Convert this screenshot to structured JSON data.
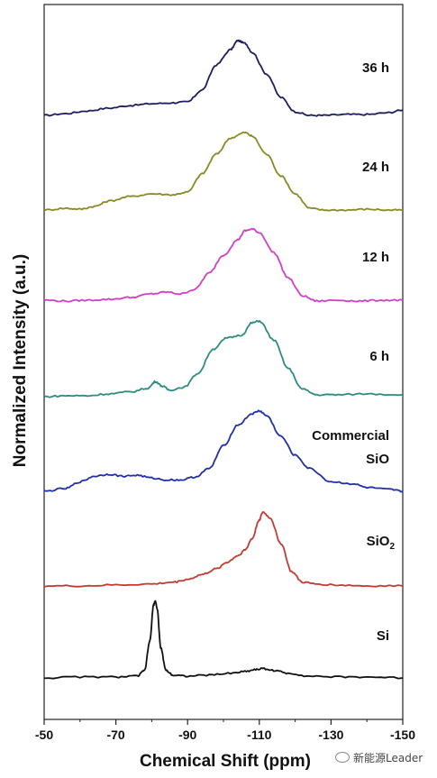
{
  "chart_data": {
    "type": "line",
    "xlabel": "Chemical Shift (ppm)",
    "ylabel": "Normalized Intensity (a.u.)",
    "xlim": [
      -50,
      -150
    ],
    "xticks": [
      "-50",
      "-70",
      "-90",
      "-110",
      "-130",
      "-150"
    ],
    "xtick_values": [
      -50,
      -70,
      -90,
      -110,
      -130,
      -150
    ],
    "series": [
      {
        "name": "36 h",
        "color": "#1c1f5c",
        "x": [
          -50,
          -56,
          -62,
          -68,
          -74,
          -80,
          -86,
          -90,
          -94,
          -98,
          -102,
          -104,
          -106,
          -108,
          -112,
          -116,
          -120,
          -124,
          -128,
          -134,
          -140,
          -146,
          -150
        ],
        "y": [
          0.02,
          0.04,
          0.07,
          0.1,
          0.13,
          0.15,
          0.16,
          0.17,
          0.3,
          0.58,
          0.75,
          0.85,
          0.82,
          0.72,
          0.48,
          0.22,
          0.06,
          0.02,
          0.02,
          0.03,
          0.03,
          0.05,
          0.08
        ]
      },
      {
        "name": "24 h",
        "color": "#888a22",
        "x": [
          -50,
          -56,
          -60,
          -64,
          -68,
          -74,
          -80,
          -86,
          -90,
          -94,
          -98,
          -102,
          -106,
          -108,
          -112,
          -116,
          -120,
          -124,
          -128,
          -134,
          -140,
          -146,
          -150
        ],
        "y": [
          0.0,
          0.02,
          0.01,
          0.04,
          0.1,
          0.15,
          0.18,
          0.17,
          0.2,
          0.4,
          0.62,
          0.8,
          0.86,
          0.82,
          0.62,
          0.38,
          0.18,
          0.02,
          0.0,
          0.0,
          0.01,
          0.0,
          0.0
        ]
      },
      {
        "name": "12 h",
        "color": "#d23fc6",
        "x": [
          -50,
          -56,
          -62,
          -68,
          -74,
          -80,
          -84,
          -88,
          -92,
          -96,
          -100,
          -104,
          -106,
          -108,
          -110,
          -114,
          -118,
          -122,
          -126,
          -132,
          -138,
          -144,
          -150
        ],
        "y": [
          0.05,
          0.04,
          0.05,
          0.06,
          0.08,
          0.12,
          0.14,
          0.12,
          0.17,
          0.35,
          0.55,
          0.72,
          0.82,
          0.84,
          0.8,
          0.58,
          0.3,
          0.1,
          0.04,
          0.05,
          0.04,
          0.05,
          0.05
        ]
      },
      {
        "name": "6 h",
        "color": "#2c8c80",
        "x": [
          -50,
          -56,
          -62,
          -68,
          -74,
          -79,
          -81,
          -83,
          -85,
          -89,
          -93,
          -97,
          -101,
          -105,
          -108,
          -110,
          -114,
          -118,
          -122,
          -126,
          -132,
          -140,
          -150
        ],
        "y": [
          0.0,
          0.01,
          0.01,
          0.03,
          0.05,
          0.09,
          0.16,
          0.11,
          0.07,
          0.1,
          0.25,
          0.5,
          0.62,
          0.65,
          0.78,
          0.8,
          0.6,
          0.3,
          0.08,
          0.02,
          0.02,
          0.03,
          0.02
        ]
      },
      {
        "name": "Commercial SiO",
        "color": "#2130a8",
        "x": [
          -50,
          -56,
          -60,
          -64,
          -68,
          -72,
          -76,
          -80,
          -84,
          -88,
          -92,
          -96,
          -100,
          -104,
          -108,
          -110,
          -112,
          -116,
          -120,
          -124,
          -130,
          -136,
          -140,
          -146,
          -150
        ],
        "y": [
          0.0,
          0.03,
          0.1,
          0.16,
          0.18,
          0.16,
          0.17,
          0.14,
          0.12,
          0.12,
          0.15,
          0.24,
          0.48,
          0.7,
          0.82,
          0.85,
          0.8,
          0.58,
          0.38,
          0.24,
          0.1,
          0.08,
          0.04,
          0.02,
          0.0
        ]
      },
      {
        "name": "SiO2",
        "color": "#c23b33",
        "x": [
          -50,
          -60,
          -70,
          -80,
          -86,
          -90,
          -94,
          -98,
          -101,
          -104,
          -106,
          -108,
          -110,
          -111,
          -113,
          -116,
          -119,
          -122,
          -126,
          -132,
          -140,
          -150
        ],
        "y": [
          0.0,
          0.0,
          0.01,
          0.02,
          0.04,
          0.07,
          0.12,
          0.18,
          0.25,
          0.32,
          0.38,
          0.5,
          0.7,
          0.78,
          0.72,
          0.45,
          0.15,
          0.04,
          0.02,
          0.01,
          0.0,
          0.0
        ]
      },
      {
        "name": "Si",
        "color": "#111111",
        "x": [
          -50,
          -60,
          -70,
          -76,
          -78,
          -79.5,
          -80.5,
          -81,
          -81.5,
          -82.5,
          -84,
          -86,
          -90,
          -96,
          -102,
          -106,
          -109,
          -111,
          -114,
          -118,
          -124,
          -132,
          -140,
          -150
        ],
        "y": [
          0.0,
          0.01,
          0.01,
          0.02,
          0.08,
          0.4,
          0.78,
          0.82,
          0.74,
          0.32,
          0.08,
          0.03,
          0.02,
          0.03,
          0.05,
          0.07,
          0.09,
          0.1,
          0.08,
          0.05,
          0.02,
          0.01,
          0.01,
          0.0
        ]
      }
    ],
    "label_lines": [
      [
        "36 h"
      ],
      [
        "24 h"
      ],
      [
        "12 h"
      ],
      [
        "6 h"
      ],
      [
        "Commercial",
        "SiO"
      ],
      [
        "SiO"
      ],
      [
        "Si"
      ]
    ],
    "label_subscripts": [
      "",
      "",
      "",
      "",
      "",
      "2",
      ""
    ],
    "grid": false,
    "legend": "none"
  },
  "watermark": "新能源Leader"
}
